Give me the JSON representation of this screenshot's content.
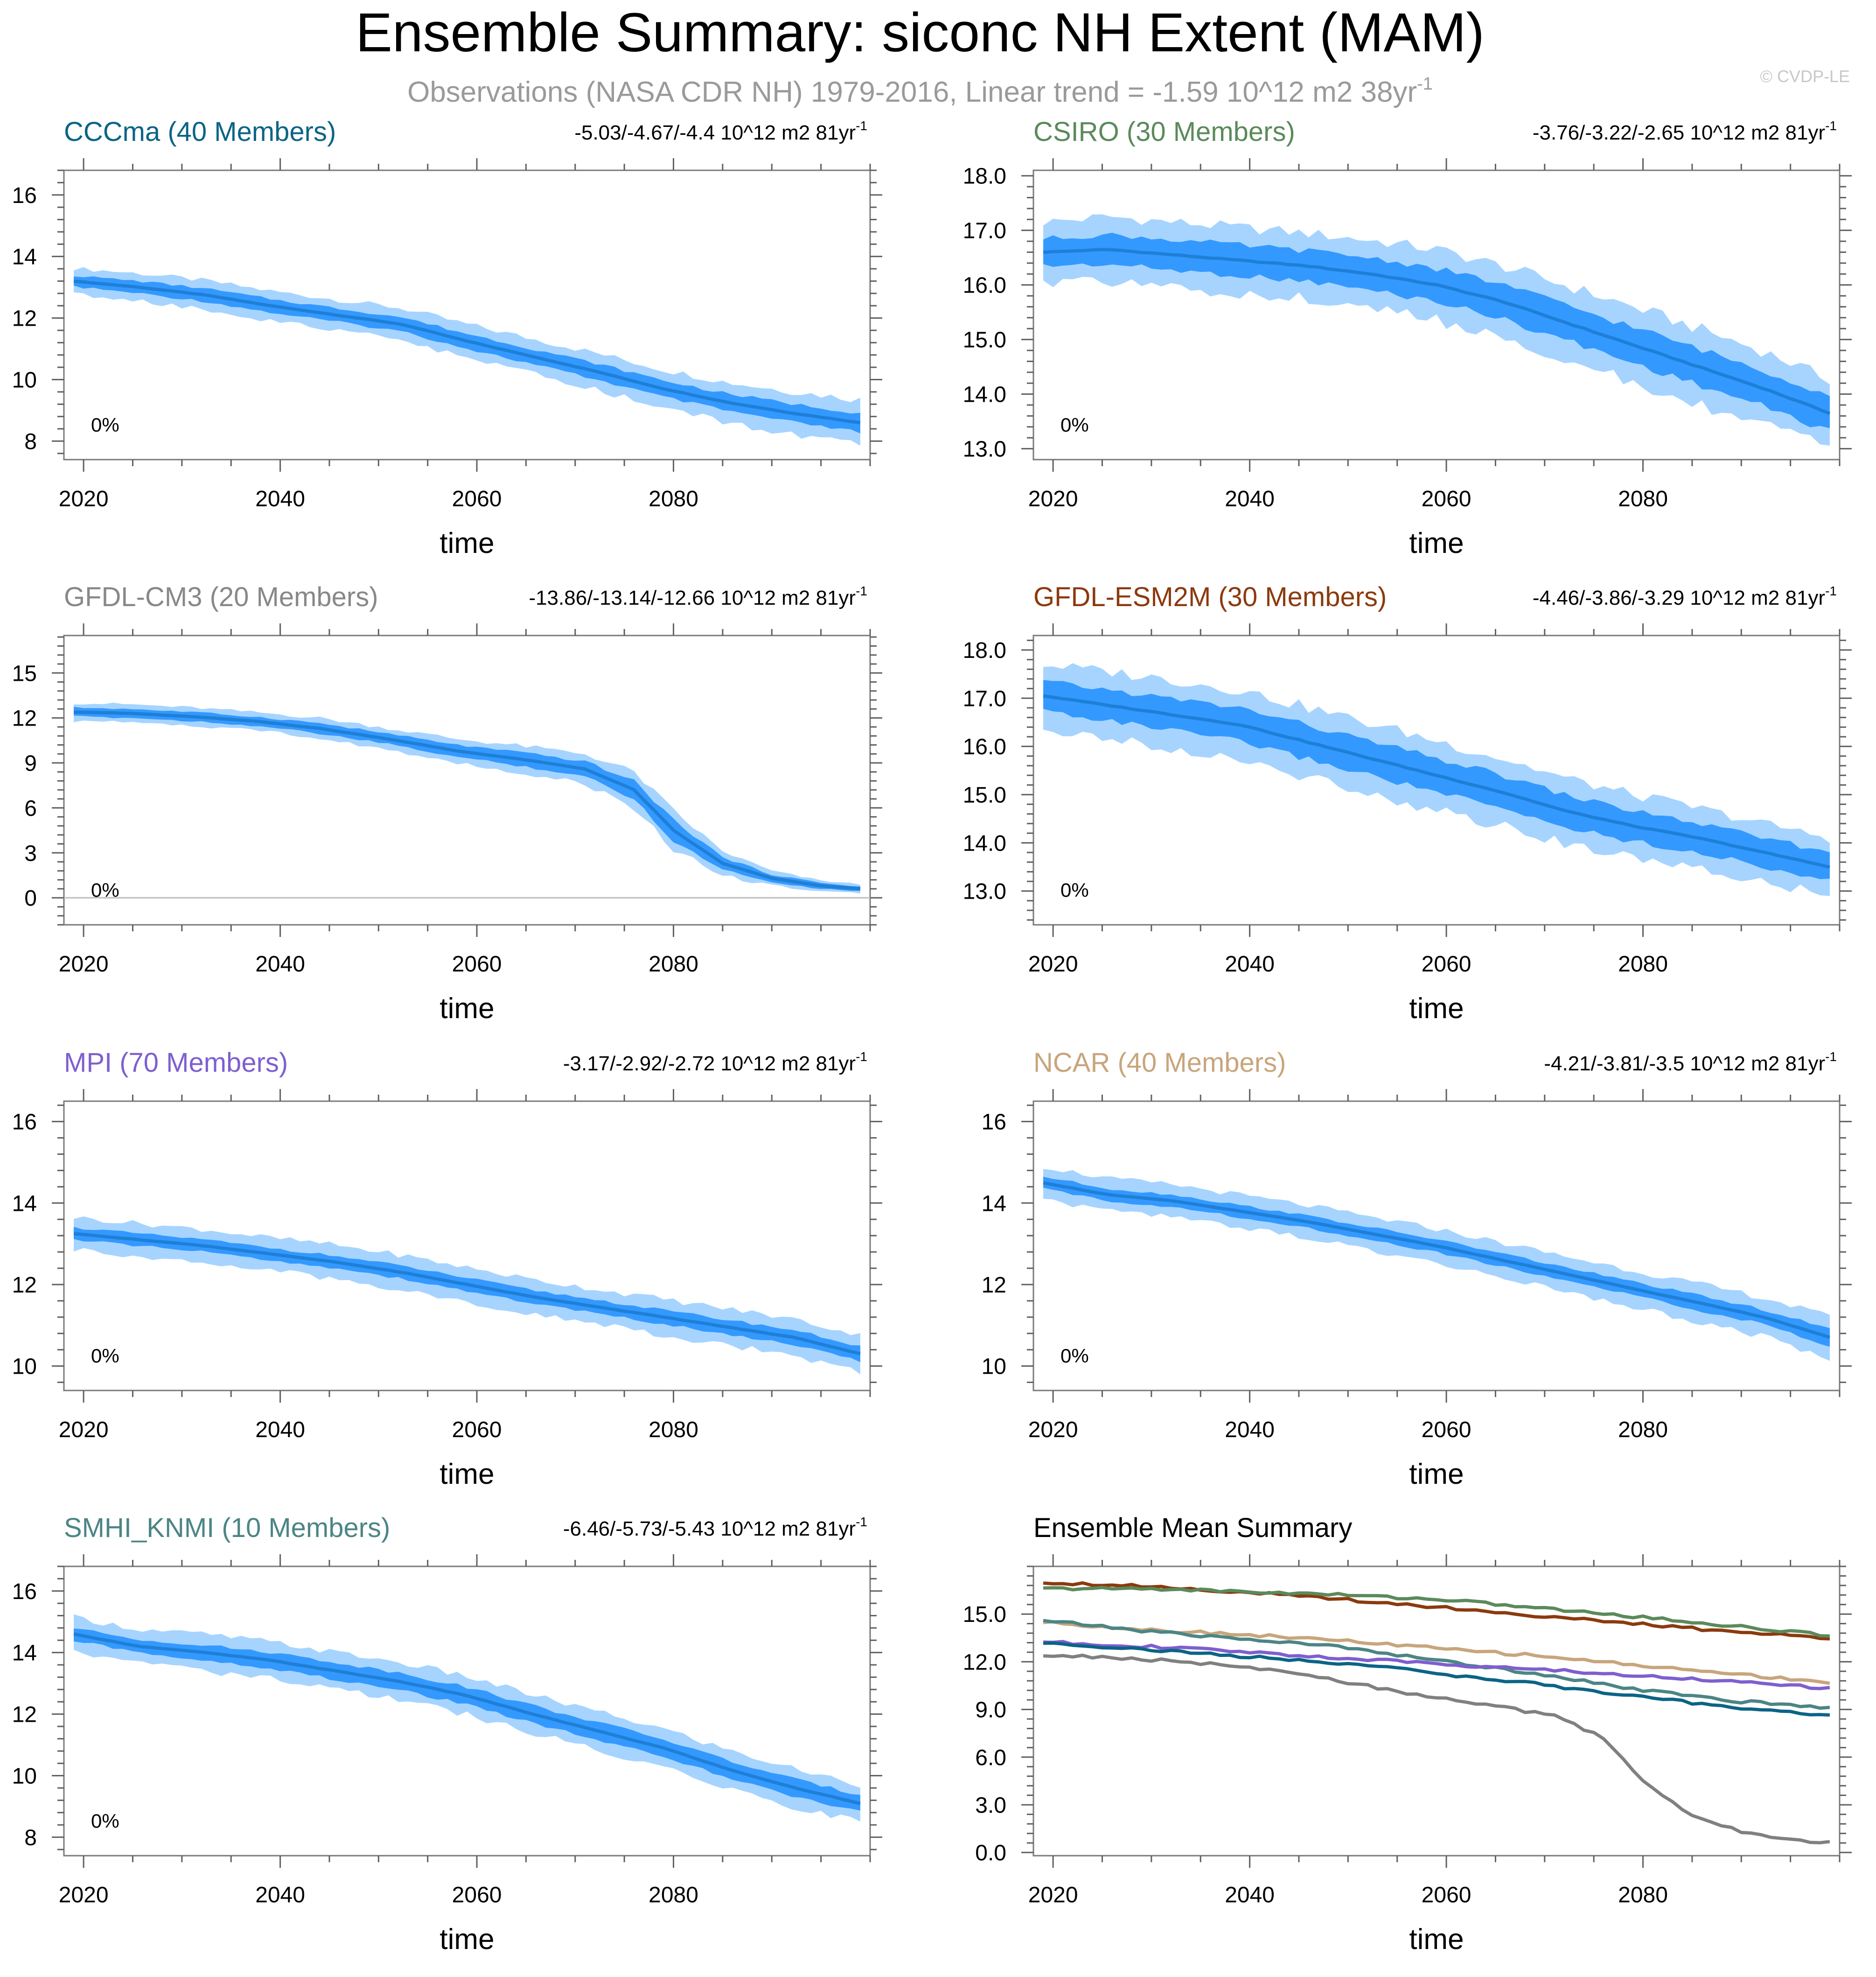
{
  "title": "Ensemble Summary: siconc NH Extent (MAM)",
  "subtitle": "Observations (NASA CDR NH) 1979-2016, Linear trend = -1.59 10^12 m2 38yr",
  "subtitle_sup": "-1",
  "watermark": "© CVDP-LE",
  "colors": {
    "band_outer": "#a6d4ff",
    "band_inner": "#3399ff",
    "mean_line": "#1e7fd6",
    "axis": "#606060"
  },
  "chart_data": [
    {
      "type": "line",
      "id": "CCCma",
      "label": "CCCma (40 Members)",
      "label_color": "#0b6486",
      "trend": "-5.03/-4.67/-4.4 10^12 m2 81yr",
      "trend_sup": "-1",
      "pct": "0%",
      "xlabel": "time",
      "xlim": [
        2018,
        2100
      ],
      "ylim": [
        7.4,
        16.8
      ],
      "yticks": [
        8,
        10,
        12,
        14,
        16
      ],
      "ytick_labels": [
        "8",
        "10",
        "12",
        "14",
        "16"
      ],
      "xticks": [
        2020,
        2040,
        2060,
        2080
      ],
      "xtick_labels": [
        "2020",
        "2040",
        "2060",
        "2080"
      ],
      "x_start": 2019,
      "x_end": 2099,
      "mean": [
        13.2,
        13.0,
        12.75,
        12.4,
        12.1,
        11.8,
        11.25,
        10.75,
        10.25,
        9.7,
        9.25,
        8.9,
        8.6
      ],
      "inner_halfwidth": [
        0.18,
        0.2,
        0.21,
        0.22,
        0.22,
        0.23,
        0.24,
        0.25,
        0.26,
        0.27,
        0.28,
        0.3,
        0.32
      ],
      "outer_halfwidth": [
        0.42,
        0.45,
        0.47,
        0.48,
        0.5,
        0.52,
        0.55,
        0.57,
        0.6,
        0.62,
        0.65,
        0.7,
        0.75
      ]
    },
    {
      "type": "line",
      "id": "CSIRO",
      "label": "CSIRO (30 Members)",
      "label_color": "#5b8a5b",
      "trend": "-3.76/-3.22/-2.65 10^12 m2 81yr",
      "trend_sup": "-1",
      "pct": "0%",
      "xlabel": "time",
      "xlim": [
        2018,
        2100
      ],
      "ylim": [
        12.8,
        18.1
      ],
      "yticks": [
        13,
        14,
        15,
        16,
        17,
        18
      ],
      "ytick_labels": [
        "13.0",
        "14.0",
        "15.0",
        "16.0",
        "17.0",
        "18.0"
      ],
      "xticks": [
        2020,
        2040,
        2060,
        2080
      ],
      "xtick_labels": [
        "2020",
        "2040",
        "2060",
        "2080"
      ],
      "x_start": 2019,
      "x_end": 2099,
      "mean": [
        16.6,
        16.65,
        16.55,
        16.45,
        16.35,
        16.2,
        16.0,
        15.7,
        15.3,
        14.9,
        14.5,
        14.1,
        13.65
      ],
      "inner_halfwidth": [
        0.25,
        0.27,
        0.28,
        0.28,
        0.28,
        0.3,
        0.3,
        0.32,
        0.32,
        0.33,
        0.33,
        0.33,
        0.33
      ],
      "outer_halfwidth": [
        0.55,
        0.6,
        0.6,
        0.6,
        0.6,
        0.62,
        0.65,
        0.65,
        0.68,
        0.7,
        0.7,
        0.68,
        0.62
      ]
    },
    {
      "type": "line",
      "id": "GFDL-CM3",
      "label": "GFDL-CM3 (20 Members)",
      "label_color": "#888888",
      "trend": "-13.86/-13.14/-12.66 10^12 m2 81yr",
      "trend_sup": "-1",
      "pct": "0%",
      "xlabel": "time",
      "xlim": [
        2018,
        2100
      ],
      "ylim": [
        -1.8,
        17.5
      ],
      "yticks": [
        0,
        3,
        6,
        9,
        12,
        15
      ],
      "ytick_labels": [
        "0",
        "3",
        "6",
        "9",
        "12",
        "15"
      ],
      "xticks": [
        2020,
        2040,
        2060,
        2080
      ],
      "xtick_labels": [
        "2020",
        "2040",
        "2060",
        "2080"
      ],
      "x_start": 2019,
      "x_end": 2099,
      "mean": [
        12.4,
        12.3,
        12.05,
        11.75,
        11.3,
        10.6,
        9.8,
        9.2,
        8.6,
        7.2,
        4.5,
        2.3,
        1.3,
        0.8,
        0.6
      ],
      "mean_x": [
        2019,
        2025,
        2032,
        2038,
        2044,
        2051,
        2058,
        2065,
        2071,
        2076,
        2080,
        2085,
        2090,
        2095,
        2099
      ],
      "inner_halfwidth": [
        0.3,
        0.3,
        0.3,
        0.3,
        0.35,
        0.35,
        0.4,
        0.45,
        0.5,
        0.6,
        0.7,
        0.4,
        0.25,
        0.2,
        0.15
      ],
      "outer_halfwidth": [
        0.6,
        0.6,
        0.6,
        0.6,
        0.7,
        0.7,
        0.8,
        0.9,
        1.0,
        1.2,
        1.3,
        0.8,
        0.5,
        0.35,
        0.3
      ]
    },
    {
      "type": "line",
      "id": "GFDL-ESM2M",
      "label": "GFDL-ESM2M (30 Members)",
      "label_color": "#8b3a0e",
      "trend": "-4.46/-3.86/-3.29 10^12 m2 81yr",
      "trend_sup": "-1",
      "pct": "0%",
      "xlabel": "time",
      "xlim": [
        2018,
        2100
      ],
      "ylim": [
        12.3,
        18.3
      ],
      "yticks": [
        13,
        14,
        15,
        16,
        17,
        18
      ],
      "ytick_labels": [
        "13.0",
        "14.0",
        "15.0",
        "16.0",
        "17.0",
        "18.0"
      ],
      "xticks": [
        2020,
        2040,
        2060,
        2080
      ],
      "xtick_labels": [
        "2020",
        "2040",
        "2060",
        "2080"
      ],
      "x_start": 2019,
      "x_end": 2099,
      "mean": [
        17.05,
        16.85,
        16.65,
        16.45,
        16.1,
        15.75,
        15.4,
        15.05,
        14.65,
        14.35,
        14.1,
        13.8,
        13.5
      ],
      "inner_halfwidth": [
        0.3,
        0.32,
        0.33,
        0.35,
        0.35,
        0.35,
        0.35,
        0.35,
        0.33,
        0.32,
        0.3,
        0.3,
        0.3
      ],
      "outer_halfwidth": [
        0.65,
        0.7,
        0.72,
        0.72,
        0.72,
        0.72,
        0.72,
        0.7,
        0.68,
        0.65,
        0.62,
        0.6,
        0.6
      ]
    },
    {
      "type": "line",
      "id": "MPI",
      "label": "MPI (70 Members)",
      "label_color": "#7e5fcf",
      "trend": "-3.17/-2.92/-2.72 10^12 m2 81yr",
      "trend_sup": "-1",
      "pct": "0%",
      "xlabel": "time",
      "xlim": [
        2018,
        2100
      ],
      "ylim": [
        9.4,
        16.5
      ],
      "yticks": [
        10,
        12,
        14,
        16
      ],
      "ytick_labels": [
        "10",
        "12",
        "14",
        "16"
      ],
      "xticks": [
        2020,
        2040,
        2060,
        2080
      ],
      "xtick_labels": [
        "2020",
        "2040",
        "2060",
        "2080"
      ],
      "x_start": 2019,
      "x_end": 2099,
      "mean": [
        13.25,
        13.1,
        12.95,
        12.75,
        12.55,
        12.3,
        12.0,
        11.7,
        11.45,
        11.2,
        10.95,
        10.7,
        10.3
      ],
      "inner_halfwidth": [
        0.15,
        0.15,
        0.15,
        0.15,
        0.15,
        0.16,
        0.16,
        0.16,
        0.17,
        0.17,
        0.18,
        0.18,
        0.18
      ],
      "outer_halfwidth": [
        0.4,
        0.4,
        0.4,
        0.4,
        0.42,
        0.42,
        0.42,
        0.42,
        0.43,
        0.44,
        0.45,
        0.45,
        0.45
      ]
    },
    {
      "type": "line",
      "id": "NCAR",
      "label": "NCAR (40 Members)",
      "label_color": "#c8a57c",
      "trend": "-4.21/-3.81/-3.5 10^12 m2 81yr",
      "trend_sup": "-1",
      "pct": "0%",
      "xlabel": "time",
      "xlim": [
        2018,
        2100
      ],
      "ylim": [
        9.4,
        16.5
      ],
      "yticks": [
        10,
        12,
        14,
        16
      ],
      "ytick_labels": [
        "10",
        "12",
        "14",
        "16"
      ],
      "xticks": [
        2020,
        2040,
        2060,
        2080
      ],
      "xtick_labels": [
        "2020",
        "2040",
        "2060",
        "2080"
      ],
      "x_start": 2019,
      "x_end": 2099,
      "mean": [
        14.5,
        14.2,
        14.05,
        13.8,
        13.55,
        13.25,
        12.95,
        12.6,
        12.25,
        11.9,
        11.55,
        11.2,
        10.7
      ],
      "inner_halfwidth": [
        0.15,
        0.15,
        0.15,
        0.15,
        0.15,
        0.15,
        0.16,
        0.16,
        0.16,
        0.17,
        0.18,
        0.18,
        0.2
      ],
      "outer_halfwidth": [
        0.4,
        0.4,
        0.4,
        0.4,
        0.4,
        0.4,
        0.42,
        0.42,
        0.43,
        0.45,
        0.46,
        0.48,
        0.5
      ]
    },
    {
      "type": "line",
      "id": "SMHI_KNMI",
      "label": "SMHI_KNMI (10 Members)",
      "label_color": "#4c8585",
      "trend": "-6.46/-5.73/-5.43 10^12 m2 81yr",
      "trend_sup": "-1",
      "pct": "0%",
      "xlabel": "time",
      "xlim": [
        2018,
        2100
      ],
      "ylim": [
        7.4,
        16.8
      ],
      "yticks": [
        8,
        10,
        12,
        14,
        16
      ],
      "ytick_labels": [
        "8",
        "10",
        "12",
        "14",
        "16"
      ],
      "xticks": [
        2020,
        2040,
        2060,
        2080
      ],
      "xtick_labels": [
        "2020",
        "2040",
        "2060",
        "2080"
      ],
      "x_start": 2019,
      "x_end": 2099,
      "mean": [
        14.6,
        14.2,
        14.0,
        13.75,
        13.4,
        13.05,
        12.6,
        12.0,
        11.45,
        10.9,
        10.2,
        9.6,
        9.1
      ],
      "inner_halfwidth": [
        0.2,
        0.22,
        0.24,
        0.26,
        0.28,
        0.28,
        0.28,
        0.28,
        0.28,
        0.28,
        0.28,
        0.28,
        0.28
      ],
      "outer_halfwidth": [
        0.55,
        0.55,
        0.6,
        0.6,
        0.6,
        0.62,
        0.62,
        0.62,
        0.62,
        0.62,
        0.62,
        0.62,
        0.6
      ]
    },
    {
      "type": "line",
      "id": "ensemble-mean-summary",
      "label": "Ensemble Mean Summary",
      "label_color": "#000000",
      "xlabel": "time",
      "xlim": [
        2018,
        2100
      ],
      "ylim": [
        -0.2,
        18.0
      ],
      "yticks": [
        0,
        3,
        6,
        9,
        12,
        15
      ],
      "ytick_labels": [
        "0.0",
        "3.0",
        "6.0",
        "9.0",
        "12.0",
        "15.0"
      ],
      "xticks": [
        2020,
        2040,
        2060,
        2080
      ],
      "xtick_labels": [
        "2020",
        "2040",
        "2060",
        "2080"
      ],
      "series": [
        {
          "name": "GFDL-ESM2M",
          "color": "#8b3a0e",
          "x": [
            2019,
            2030,
            2040,
            2050,
            2060,
            2070,
            2080,
            2090,
            2099
          ],
          "values": [
            17.0,
            16.75,
            16.35,
            15.9,
            15.4,
            14.85,
            14.35,
            13.85,
            13.5
          ]
        },
        {
          "name": "CSIRO",
          "color": "#5b8a5b",
          "x": [
            2019,
            2030,
            2040,
            2050,
            2060,
            2070,
            2080,
            2090,
            2099
          ],
          "values": [
            16.6,
            16.6,
            16.4,
            16.2,
            15.9,
            15.35,
            14.8,
            14.2,
            13.65
          ]
        },
        {
          "name": "NCAR",
          "color": "#c8a57c",
          "x": [
            2019,
            2030,
            2040,
            2050,
            2060,
            2070,
            2080,
            2090,
            2099
          ],
          "values": [
            14.5,
            14.0,
            13.7,
            13.3,
            12.8,
            12.35,
            11.75,
            11.2,
            10.7
          ]
        },
        {
          "name": "SMHI_KNMI",
          "color": "#4c8585",
          "x": [
            2019,
            2030,
            2040,
            2050,
            2060,
            2070,
            2080,
            2090,
            2099
          ],
          "values": [
            14.6,
            13.9,
            13.4,
            12.9,
            12.0,
            11.2,
            10.2,
            9.5,
            9.1
          ]
        },
        {
          "name": "MPI",
          "color": "#7e5fcf",
          "x": [
            2019,
            2030,
            2040,
            2050,
            2060,
            2070,
            2080,
            2090,
            2099
          ],
          "values": [
            13.25,
            12.95,
            12.6,
            12.2,
            11.85,
            11.5,
            11.1,
            10.75,
            10.3
          ]
        },
        {
          "name": "CCCma",
          "color": "#0b6486",
          "x": [
            2019,
            2030,
            2040,
            2050,
            2060,
            2070,
            2080,
            2090,
            2099
          ],
          "values": [
            13.2,
            12.75,
            12.3,
            11.9,
            11.2,
            10.55,
            9.75,
            9.1,
            8.6
          ]
        },
        {
          "name": "GFDL-CM3",
          "color": "#808080",
          "x": [
            2019,
            2025,
            2032,
            2038,
            2044,
            2051,
            2058,
            2065,
            2071,
            2076,
            2080,
            2085,
            2090,
            2095,
            2099
          ],
          "values": [
            12.4,
            12.3,
            12.05,
            11.75,
            11.3,
            10.6,
            9.8,
            9.2,
            8.6,
            7.2,
            4.5,
            2.3,
            1.3,
            0.8,
            0.6
          ]
        }
      ]
    }
  ]
}
